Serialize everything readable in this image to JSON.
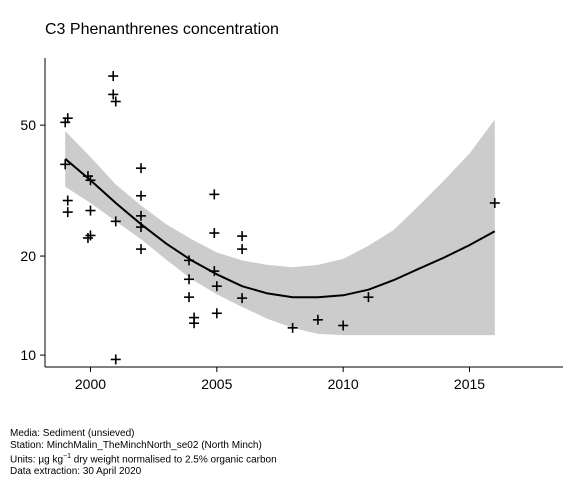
{
  "chart_data": {
    "type": "scatter",
    "title": "C3 Phenanthrenes concentration",
    "xlabel": "",
    "ylabel": "",
    "y_scale": "log",
    "xlim": [
      1998.2,
      2018.7
    ],
    "ylim": [
      9.2,
      80
    ],
    "x_ticks": [
      2000,
      2005,
      2010,
      2015
    ],
    "y_ticks": [
      10,
      20,
      50
    ],
    "points": [
      {
        "x": 1999.0,
        "y": 51.0
      },
      {
        "x": 1999.1,
        "y": 52.5
      },
      {
        "x": 1999.0,
        "y": 38.0
      },
      {
        "x": 1999.1,
        "y": 29.5
      },
      {
        "x": 1999.1,
        "y": 27.2
      },
      {
        "x": 1999.9,
        "y": 35.0
      },
      {
        "x": 2000.0,
        "y": 34.0
      },
      {
        "x": 2000.0,
        "y": 27.5
      },
      {
        "x": 1999.9,
        "y": 22.7
      },
      {
        "x": 2000.0,
        "y": 23.1
      },
      {
        "x": 2000.9,
        "y": 70.5
      },
      {
        "x": 2000.9,
        "y": 62.0
      },
      {
        "x": 2001.0,
        "y": 59.0
      },
      {
        "x": 2001.0,
        "y": 25.5
      },
      {
        "x": 2001.0,
        "y": 9.7
      },
      {
        "x": 2002.0,
        "y": 37.0
      },
      {
        "x": 2002.0,
        "y": 30.5
      },
      {
        "x": 2002.0,
        "y": 26.5
      },
      {
        "x": 2002.0,
        "y": 24.5
      },
      {
        "x": 2002.0,
        "y": 21.0
      },
      {
        "x": 2003.9,
        "y": 19.4
      },
      {
        "x": 2003.9,
        "y": 17.0
      },
      {
        "x": 2003.9,
        "y": 15.0
      },
      {
        "x": 2004.1,
        "y": 13.0
      },
      {
        "x": 2004.1,
        "y": 12.5
      },
      {
        "x": 2004.9,
        "y": 30.8
      },
      {
        "x": 2004.9,
        "y": 23.5
      },
      {
        "x": 2004.9,
        "y": 18.0
      },
      {
        "x": 2005.0,
        "y": 16.2
      },
      {
        "x": 2005.0,
        "y": 13.4
      },
      {
        "x": 2006.0,
        "y": 23.0
      },
      {
        "x": 2006.0,
        "y": 21.0
      },
      {
        "x": 2006.0,
        "y": 14.9
      },
      {
        "x": 2008.0,
        "y": 12.1
      },
      {
        "x": 2009.0,
        "y": 12.8
      },
      {
        "x": 2010.0,
        "y": 12.3
      },
      {
        "x": 2011.0,
        "y": 15.0
      },
      {
        "x": 2016.0,
        "y": 29.0
      }
    ],
    "trend": {
      "x": [
        1999.0,
        2000.0,
        2001.0,
        2002.0,
        2003.0,
        2004.0,
        2005.0,
        2006.0,
        2007.0,
        2008.0,
        2009.0,
        2010.0,
        2011.0,
        2012.0,
        2013.0,
        2014.0,
        2015.0,
        2016.0
      ],
      "fit": [
        39.5,
        34.0,
        29.0,
        25.0,
        21.8,
        19.4,
        17.6,
        16.2,
        15.4,
        15.0,
        15.0,
        15.2,
        15.8,
        16.9,
        18.3,
        19.8,
        21.6,
        23.8
      ],
      "lower": [
        32.5,
        29.0,
        25.5,
        22.5,
        19.5,
        17.0,
        15.3,
        14.0,
        12.9,
        12.1,
        11.6,
        11.5,
        11.5,
        11.5,
        11.5,
        11.5,
        11.5,
        11.5
      ],
      "upper": [
        48.0,
        40.0,
        33.0,
        28.5,
        25.0,
        22.5,
        20.5,
        19.4,
        18.8,
        18.5,
        18.8,
        19.6,
        21.5,
        24.0,
        28.5,
        34.0,
        41.0,
        52.0
      ]
    }
  },
  "footer": {
    "media": "Media: Sediment (unsieved)",
    "station": "Station: MinchMalin_TheMinchNorth_se02 (North Minch)",
    "units_prefix": "Units: µg kg",
    "units_exponent": "−1",
    "units_suffix": " dry weight normalised to 2.5% organic carbon",
    "extraction": "Data extraction: 30 April 2020"
  },
  "colors": {
    "band": "#cccccc",
    "line": "#000000"
  }
}
